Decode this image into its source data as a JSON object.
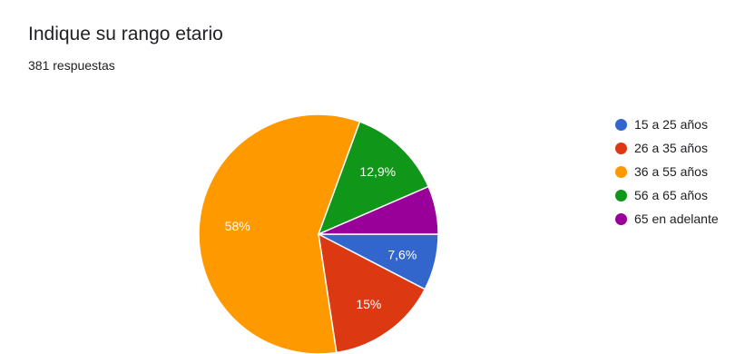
{
  "header": {
    "title": "Indique su rango etario",
    "subtitle": "381 respuestas"
  },
  "chart_data": {
    "type": "pie",
    "title": "Indique su rango etario",
    "categories": [
      "15 a 25 años",
      "26 a 35 años",
      "36 a 55 años",
      "56 a 65 años",
      "65 en adelante"
    ],
    "values": [
      7.6,
      15,
      58,
      12.9,
      6.5
    ],
    "data_labels": [
      "7,6%",
      "15%",
      "58%",
      "12,9%",
      ""
    ],
    "colors": [
      "#3366cc",
      "#dc3912",
      "#ff9900",
      "#109618",
      "#990099"
    ],
    "start_angle_deg": 0,
    "direction": "clockwise",
    "legend_position": "right"
  }
}
